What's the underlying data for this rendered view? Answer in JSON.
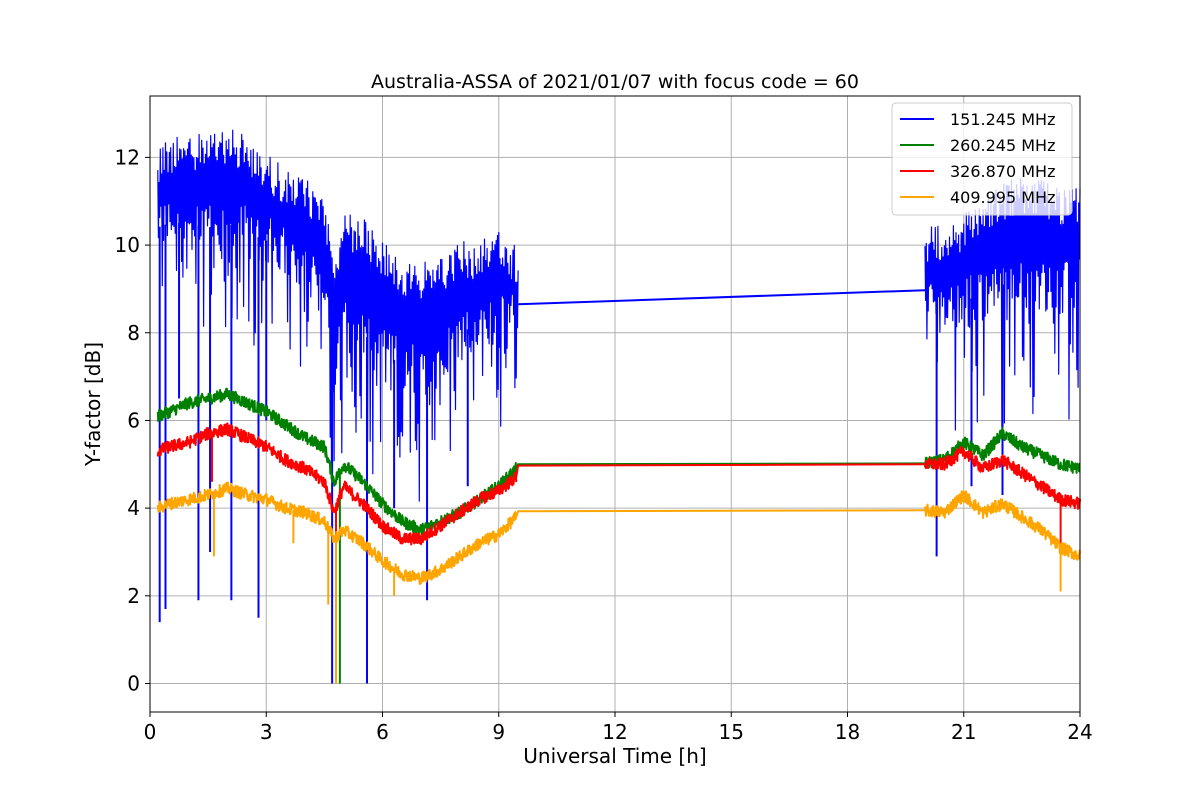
{
  "chart_data": {
    "type": "line",
    "title": "Australia-ASSA of 2021/01/07 with focus code = 60",
    "xlabel": "Universal Time [h]",
    "ylabel": "Y-factor [dB]",
    "xlim": [
      0,
      24
    ],
    "ylim": [
      -0.65,
      13.4
    ],
    "xticks": [
      0,
      3,
      6,
      9,
      12,
      15,
      18,
      21,
      24
    ],
    "yticks": [
      0,
      2,
      4,
      6,
      8,
      10,
      12
    ],
    "grid": true,
    "legend_position": "top-right",
    "series": [
      {
        "name": "151.245 MHz",
        "color": "#0000ff",
        "envelope": {
          "x": [
            0.2,
            0.5,
            1.0,
            1.5,
            2.0,
            2.5,
            3.0,
            3.5,
            4.0,
            4.5,
            4.75,
            5.0,
            5.5,
            6.0,
            6.5,
            7.0,
            7.5,
            8.0,
            8.5,
            9.0,
            9.45,
            20.0,
            20.5,
            21.0,
            21.5,
            22.0,
            22.5,
            23.0,
            23.5,
            24.0
          ],
          "upper": [
            12.3,
            12.5,
            12.6,
            12.6,
            12.7,
            12.5,
            12.1,
            11.8,
            11.5,
            11.3,
            9.5,
            10.7,
            10.7,
            10.2,
            9.7,
            9.6,
            9.7,
            10.1,
            10.1,
            10.3,
            10.0,
            10.5,
            10.4,
            10.7,
            11.2,
            11.4,
            11.6,
            11.5,
            11.3,
            11.4
          ],
          "lower": [
            8.4,
            8.3,
            8.2,
            8.0,
            8.1,
            8.0,
            7.9,
            7.6,
            7.3,
            6.4,
            4.5,
            5.4,
            5.1,
            4.6,
            4.5,
            4.4,
            5.2,
            5.8,
            6.2,
            5.9,
            6.4,
            6.2,
            6.6,
            5.4,
            5.3,
            5.8,
            5.6,
            5.9,
            6.0,
            6.2
          ],
          "mid": [
            10.4,
            10.5,
            10.5,
            10.4,
            10.5,
            10.3,
            10.1,
            9.8,
            9.5,
            8.9,
            7.0,
            8.2,
            8.0,
            7.5,
            7.3,
            7.1,
            7.5,
            8.0,
            8.2,
            8.2,
            8.6,
            8.9,
            8.7,
            8.7,
            8.9,
            9.1,
            9.1,
            9.1,
            9.0,
            9.1
          ]
        },
        "spikes": [
          [
            0.25,
            1.4
          ],
          [
            0.4,
            1.7
          ],
          [
            0.75,
            6.5
          ],
          [
            1.25,
            1.9
          ],
          [
            1.55,
            3.0
          ],
          [
            2.1,
            1.9
          ],
          [
            2.8,
            1.5
          ],
          [
            3.0,
            6.0
          ],
          [
            4.7,
            0.0
          ],
          [
            5.6,
            0.0
          ],
          [
            6.3,
            4.0
          ],
          [
            7.15,
            1.9
          ],
          [
            8.2,
            4.5
          ],
          [
            20.3,
            2.9
          ],
          [
            21.2,
            4.5
          ],
          [
            22.0,
            4.3
          ]
        ],
        "gap": {
          "from": [
            9.5,
            8.65
          ],
          "to": [
            20.0,
            8.97
          ]
        }
      },
      {
        "name": "260.245 MHz",
        "color": "#008000",
        "x": [
          0.2,
          0.5,
          1.0,
          1.5,
          2.0,
          2.5,
          3.0,
          3.5,
          4.0,
          4.5,
          4.75,
          5.0,
          5.5,
          6.0,
          6.5,
          7.0,
          7.5,
          8.0,
          8.5,
          9.0,
          9.45,
          9.5,
          20.0,
          20.5,
          21.0,
          21.5,
          22.0,
          22.5,
          23.0,
          23.5,
          24.0
        ],
        "y": [
          6.1,
          6.2,
          6.4,
          6.5,
          6.6,
          6.4,
          6.2,
          5.9,
          5.6,
          5.4,
          4.6,
          5.0,
          4.6,
          4.1,
          3.7,
          3.5,
          3.7,
          3.9,
          4.2,
          4.5,
          4.9,
          5.0,
          5.02,
          5.1,
          5.5,
          5.2,
          5.7,
          5.4,
          5.2,
          5.0,
          4.9
        ],
        "spikes": [
          [
            4.9,
            0.0
          ]
        ]
      },
      {
        "name": "326.870 MHz",
        "color": "#ff0000",
        "x": [
          0.2,
          0.5,
          1.0,
          1.5,
          2.0,
          2.5,
          3.0,
          3.5,
          4.0,
          4.5,
          4.75,
          5.0,
          5.5,
          6.0,
          6.5,
          7.0,
          7.5,
          8.0,
          8.5,
          9.0,
          9.45,
          9.5,
          20.0,
          20.5,
          21.0,
          21.5,
          22.0,
          22.5,
          23.0,
          23.5,
          24.0
        ],
        "y": [
          5.3,
          5.4,
          5.5,
          5.7,
          5.8,
          5.6,
          5.4,
          5.1,
          4.9,
          4.6,
          3.9,
          4.5,
          4.1,
          3.6,
          3.3,
          3.3,
          3.6,
          3.9,
          4.2,
          4.4,
          4.7,
          4.97,
          5.0,
          5.0,
          5.3,
          4.9,
          5.1,
          4.8,
          4.5,
          4.2,
          4.1
        ],
        "spikes": [
          [
            1.6,
            4.6
          ],
          [
            4.8,
            0.0
          ],
          [
            23.5,
            3.0
          ]
        ]
      },
      {
        "name": "409.995 MHz",
        "color": "#ffa500",
        "x": [
          0.2,
          0.5,
          1.0,
          1.5,
          2.0,
          2.5,
          3.0,
          3.5,
          4.0,
          4.5,
          4.75,
          5.0,
          5.5,
          6.0,
          6.5,
          7.0,
          7.5,
          8.0,
          8.5,
          9.0,
          9.45,
          9.5,
          20.0,
          20.5,
          21.0,
          21.5,
          22.0,
          22.5,
          23.0,
          23.5,
          24.0
        ],
        "y": [
          4.0,
          4.1,
          4.2,
          4.3,
          4.45,
          4.3,
          4.2,
          4.0,
          3.9,
          3.7,
          3.3,
          3.5,
          3.2,
          2.8,
          2.5,
          2.4,
          2.6,
          2.9,
          3.2,
          3.4,
          3.8,
          3.93,
          3.95,
          3.9,
          4.3,
          3.9,
          4.1,
          3.8,
          3.5,
          3.1,
          2.9
        ],
        "spikes": [
          [
            1.65,
            2.9
          ],
          [
            3.7,
            3.2
          ],
          [
            4.6,
            1.8
          ],
          [
            4.8,
            0.0
          ],
          [
            6.3,
            2.0
          ],
          [
            23.5,
            2.1
          ]
        ]
      }
    ]
  }
}
